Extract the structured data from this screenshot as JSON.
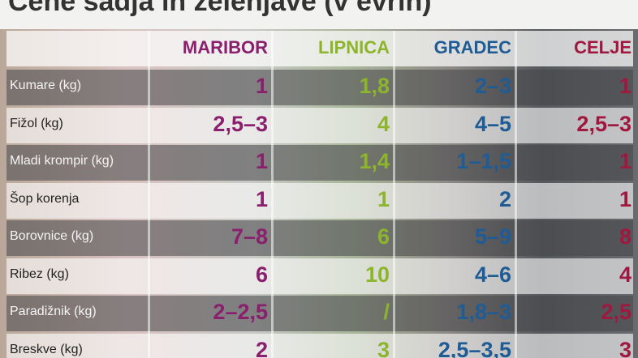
{
  "title": "Cene sadja in zelenjave (v evrih)",
  "table": {
    "columns": [
      {
        "name": "MARIBOR",
        "color": "#8a1f6e"
      },
      {
        "name": "LIPNICA",
        "color": "#8cb52c"
      },
      {
        "name": "GRADEC",
        "color": "#1f5c96"
      },
      {
        "name": "CELJE",
        "color": "#a0173f"
      }
    ],
    "rows": [
      [
        "Kumare (kg)",
        "1",
        "1,8",
        "2–3",
        "1"
      ],
      [
        "Fižol (kg)",
        "2,5–3",
        "4",
        "4–5",
        "2,5–3"
      ],
      [
        "Mladi krompir (kg)",
        "1",
        "1,4",
        "1–1,5",
        "1"
      ],
      [
        "Šop korenja",
        "1",
        "1",
        "2",
        "1"
      ],
      [
        "Borovnice (kg)",
        "7–8",
        "6",
        "5–9",
        "8"
      ],
      [
        "Ribez (kg)",
        "6",
        "10",
        "4–6",
        "4"
      ],
      [
        "Paradižnik (kg)",
        "2–2,5",
        "/",
        "1,8–3",
        "2,5"
      ],
      [
        "Breskve (kg)",
        "2",
        "3",
        "2,5–3,5",
        "3"
      ]
    ]
  }
}
